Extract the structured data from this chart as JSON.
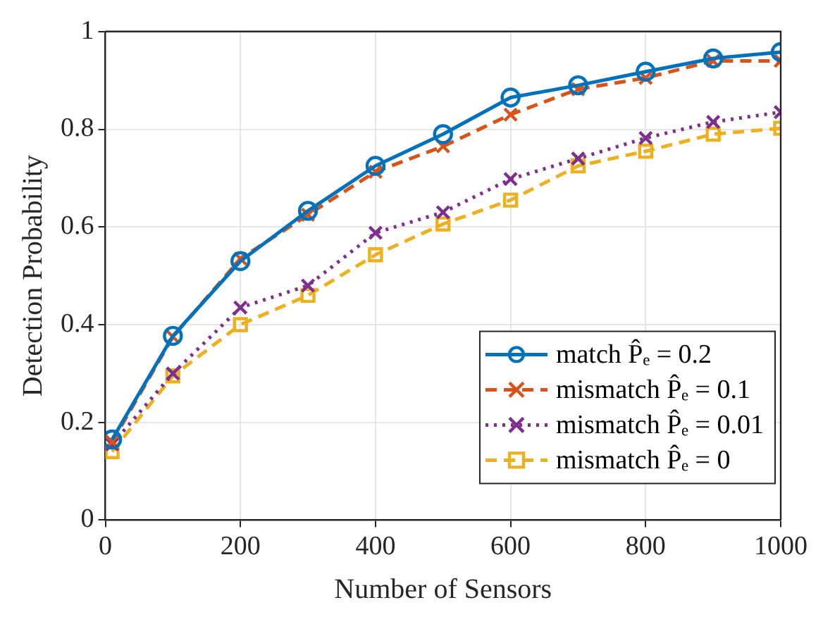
{
  "chart_data": {
    "type": "line",
    "xlabel": "Number of Sensors",
    "ylabel": "Detection Probability",
    "x": [
      10,
      100,
      200,
      300,
      400,
      500,
      600,
      700,
      800,
      900,
      1000
    ],
    "series": [
      {
        "name": "match P̂ₑ = 0.2",
        "color": "#0072bd",
        "marker": "circle",
        "line_style": "solid",
        "values": [
          0.165,
          0.377,
          0.53,
          0.633,
          0.725,
          0.79,
          0.865,
          0.89,
          0.918,
          0.945,
          0.958
        ]
      },
      {
        "name": "mismatch P̂ₑ = 0.1",
        "color": "#d95319",
        "marker": "cross",
        "line_style": "dashed",
        "values": [
          0.16,
          0.375,
          0.535,
          0.625,
          0.713,
          0.765,
          0.83,
          0.882,
          0.905,
          0.94,
          0.94
        ]
      },
      {
        "name": "mismatch P̂ₑ = 0.01",
        "color": "#7e2f8e",
        "marker": "cross",
        "line_style": "dotted",
        "values": [
          0.155,
          0.3,
          0.435,
          0.48,
          0.588,
          0.63,
          0.698,
          0.74,
          0.782,
          0.815,
          0.835
        ]
      },
      {
        "name": "mismatch P̂ₑ = 0",
        "color": "#edb120",
        "marker": "square",
        "line_style": "dashed",
        "values": [
          0.14,
          0.295,
          0.4,
          0.46,
          0.543,
          0.606,
          0.655,
          0.725,
          0.755,
          0.79,
          0.802
        ]
      }
    ],
    "xlim": [
      0,
      1000
    ],
    "xticks": [
      0,
      200,
      400,
      600,
      800,
      1000
    ],
    "ylim": [
      0,
      1
    ],
    "yticks": [
      0,
      0.2,
      0.4,
      0.6,
      0.8,
      1
    ],
    "grid": true,
    "legend": "bottom right"
  }
}
